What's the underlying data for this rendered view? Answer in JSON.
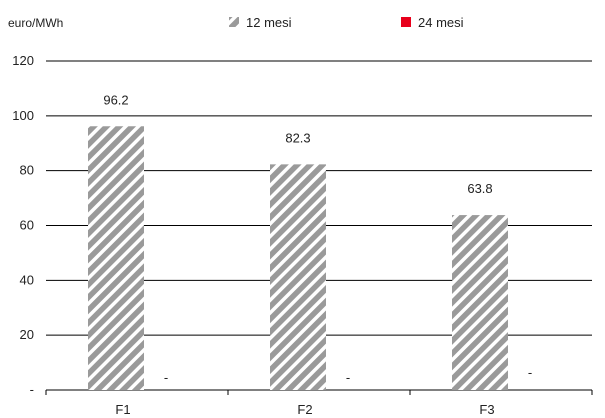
{
  "chart_data": {
    "type": "bar",
    "ylabel": "euro/MWh",
    "categories": [
      "F1",
      "F2",
      "F3"
    ],
    "ylim": [
      0,
      120
    ],
    "yticks": [
      0,
      20,
      40,
      60,
      80,
      100,
      120
    ],
    "ytick_labels": [
      "-",
      "20",
      "40",
      "60",
      "80",
      "100",
      "120"
    ],
    "grid": true,
    "legend_position": "top",
    "series": [
      {
        "name": "12 mesi",
        "values": [
          96.2,
          82.3,
          63.8
        ],
        "value_labels": [
          "96.2",
          "82.3",
          "63.8"
        ],
        "color": "#9a9a9a",
        "pattern": "diagonal-hatch"
      },
      {
        "name": "24 mesi",
        "values": [
          0,
          0,
          0
        ],
        "value_labels": [
          "-",
          "-",
          "-"
        ],
        "color": "#e8001c"
      }
    ]
  }
}
